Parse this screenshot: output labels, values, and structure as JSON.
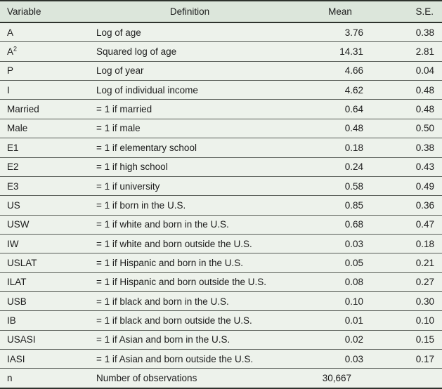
{
  "table": {
    "columns": [
      {
        "label": "Variable"
      },
      {
        "label": "Definition"
      },
      {
        "label": "Mean"
      },
      {
        "label": "S.E."
      }
    ],
    "rows": [
      {
        "variable": "A",
        "definition": "Log of age",
        "mean": "3.76",
        "se": "0.38"
      },
      {
        "variable": "A",
        "variable_sup": "2",
        "definition": "Squared log of age",
        "mean": "14.31",
        "se": "2.81"
      },
      {
        "variable": "P",
        "definition": "Log of year",
        "mean": "4.66",
        "se": "0.04"
      },
      {
        "variable": "I",
        "definition": "Log of individual income",
        "mean": "4.62",
        "se": "0.48"
      },
      {
        "variable": "Married",
        "definition": "= 1 if married",
        "mean": "0.64",
        "se": "0.48"
      },
      {
        "variable": "Male",
        "definition": "= 1 if male",
        "mean": "0.48",
        "se": "0.50"
      },
      {
        "variable": "E1",
        "definition": "= 1 if elementary school",
        "mean": "0.18",
        "se": "0.38"
      },
      {
        "variable": "E2",
        "definition": "= 1 if high school",
        "mean": "0.24",
        "se": "0.43"
      },
      {
        "variable": "E3",
        "definition": "= 1 if university",
        "mean": "0.58",
        "se": "0.49"
      },
      {
        "variable": "US",
        "definition": "= 1 if born in the U.S.",
        "mean": "0.85",
        "se": "0.36"
      },
      {
        "variable": "USW",
        "definition": "= 1 if white and born in the U.S.",
        "mean": "0.68",
        "se": "0.47"
      },
      {
        "variable": "IW",
        "definition": "= 1 if white and born outside the U.S.",
        "mean": "0.03",
        "se": "0.18"
      },
      {
        "variable": "USLAT",
        "definition": "= 1 if Hispanic and born in the U.S.",
        "mean": "0.05",
        "se": "0.21"
      },
      {
        "variable": "ILAT",
        "definition": "= 1 if Hispanic and born outside the U.S.",
        "mean": "0.08",
        "se": "0.27"
      },
      {
        "variable": "USB",
        "definition": "= 1 if black and born in the U.S.",
        "mean": "0.10",
        "se": "0.30"
      },
      {
        "variable": "IB",
        "definition": "= 1 if black and born outside the U.S.",
        "mean": "0.01",
        "se": "0.10"
      },
      {
        "variable": "USASI",
        "definition": "= 1 if Asian and born in the U.S.",
        "mean": "0.02",
        "se": "0.15"
      },
      {
        "variable": "IASI",
        "definition": "= 1 if Asian and born outside the U.S.",
        "mean": "0.03",
        "se": "0.17"
      },
      {
        "variable": "n",
        "definition": "Number of observations",
        "mean": "30,667",
        "se": ""
      }
    ],
    "colors": {
      "header_bg": "#dce6db",
      "row_bg": "#edf2eb",
      "rule": "#565b55",
      "heavy_rule": "#2e332d",
      "text": "#1c1c1c"
    }
  }
}
